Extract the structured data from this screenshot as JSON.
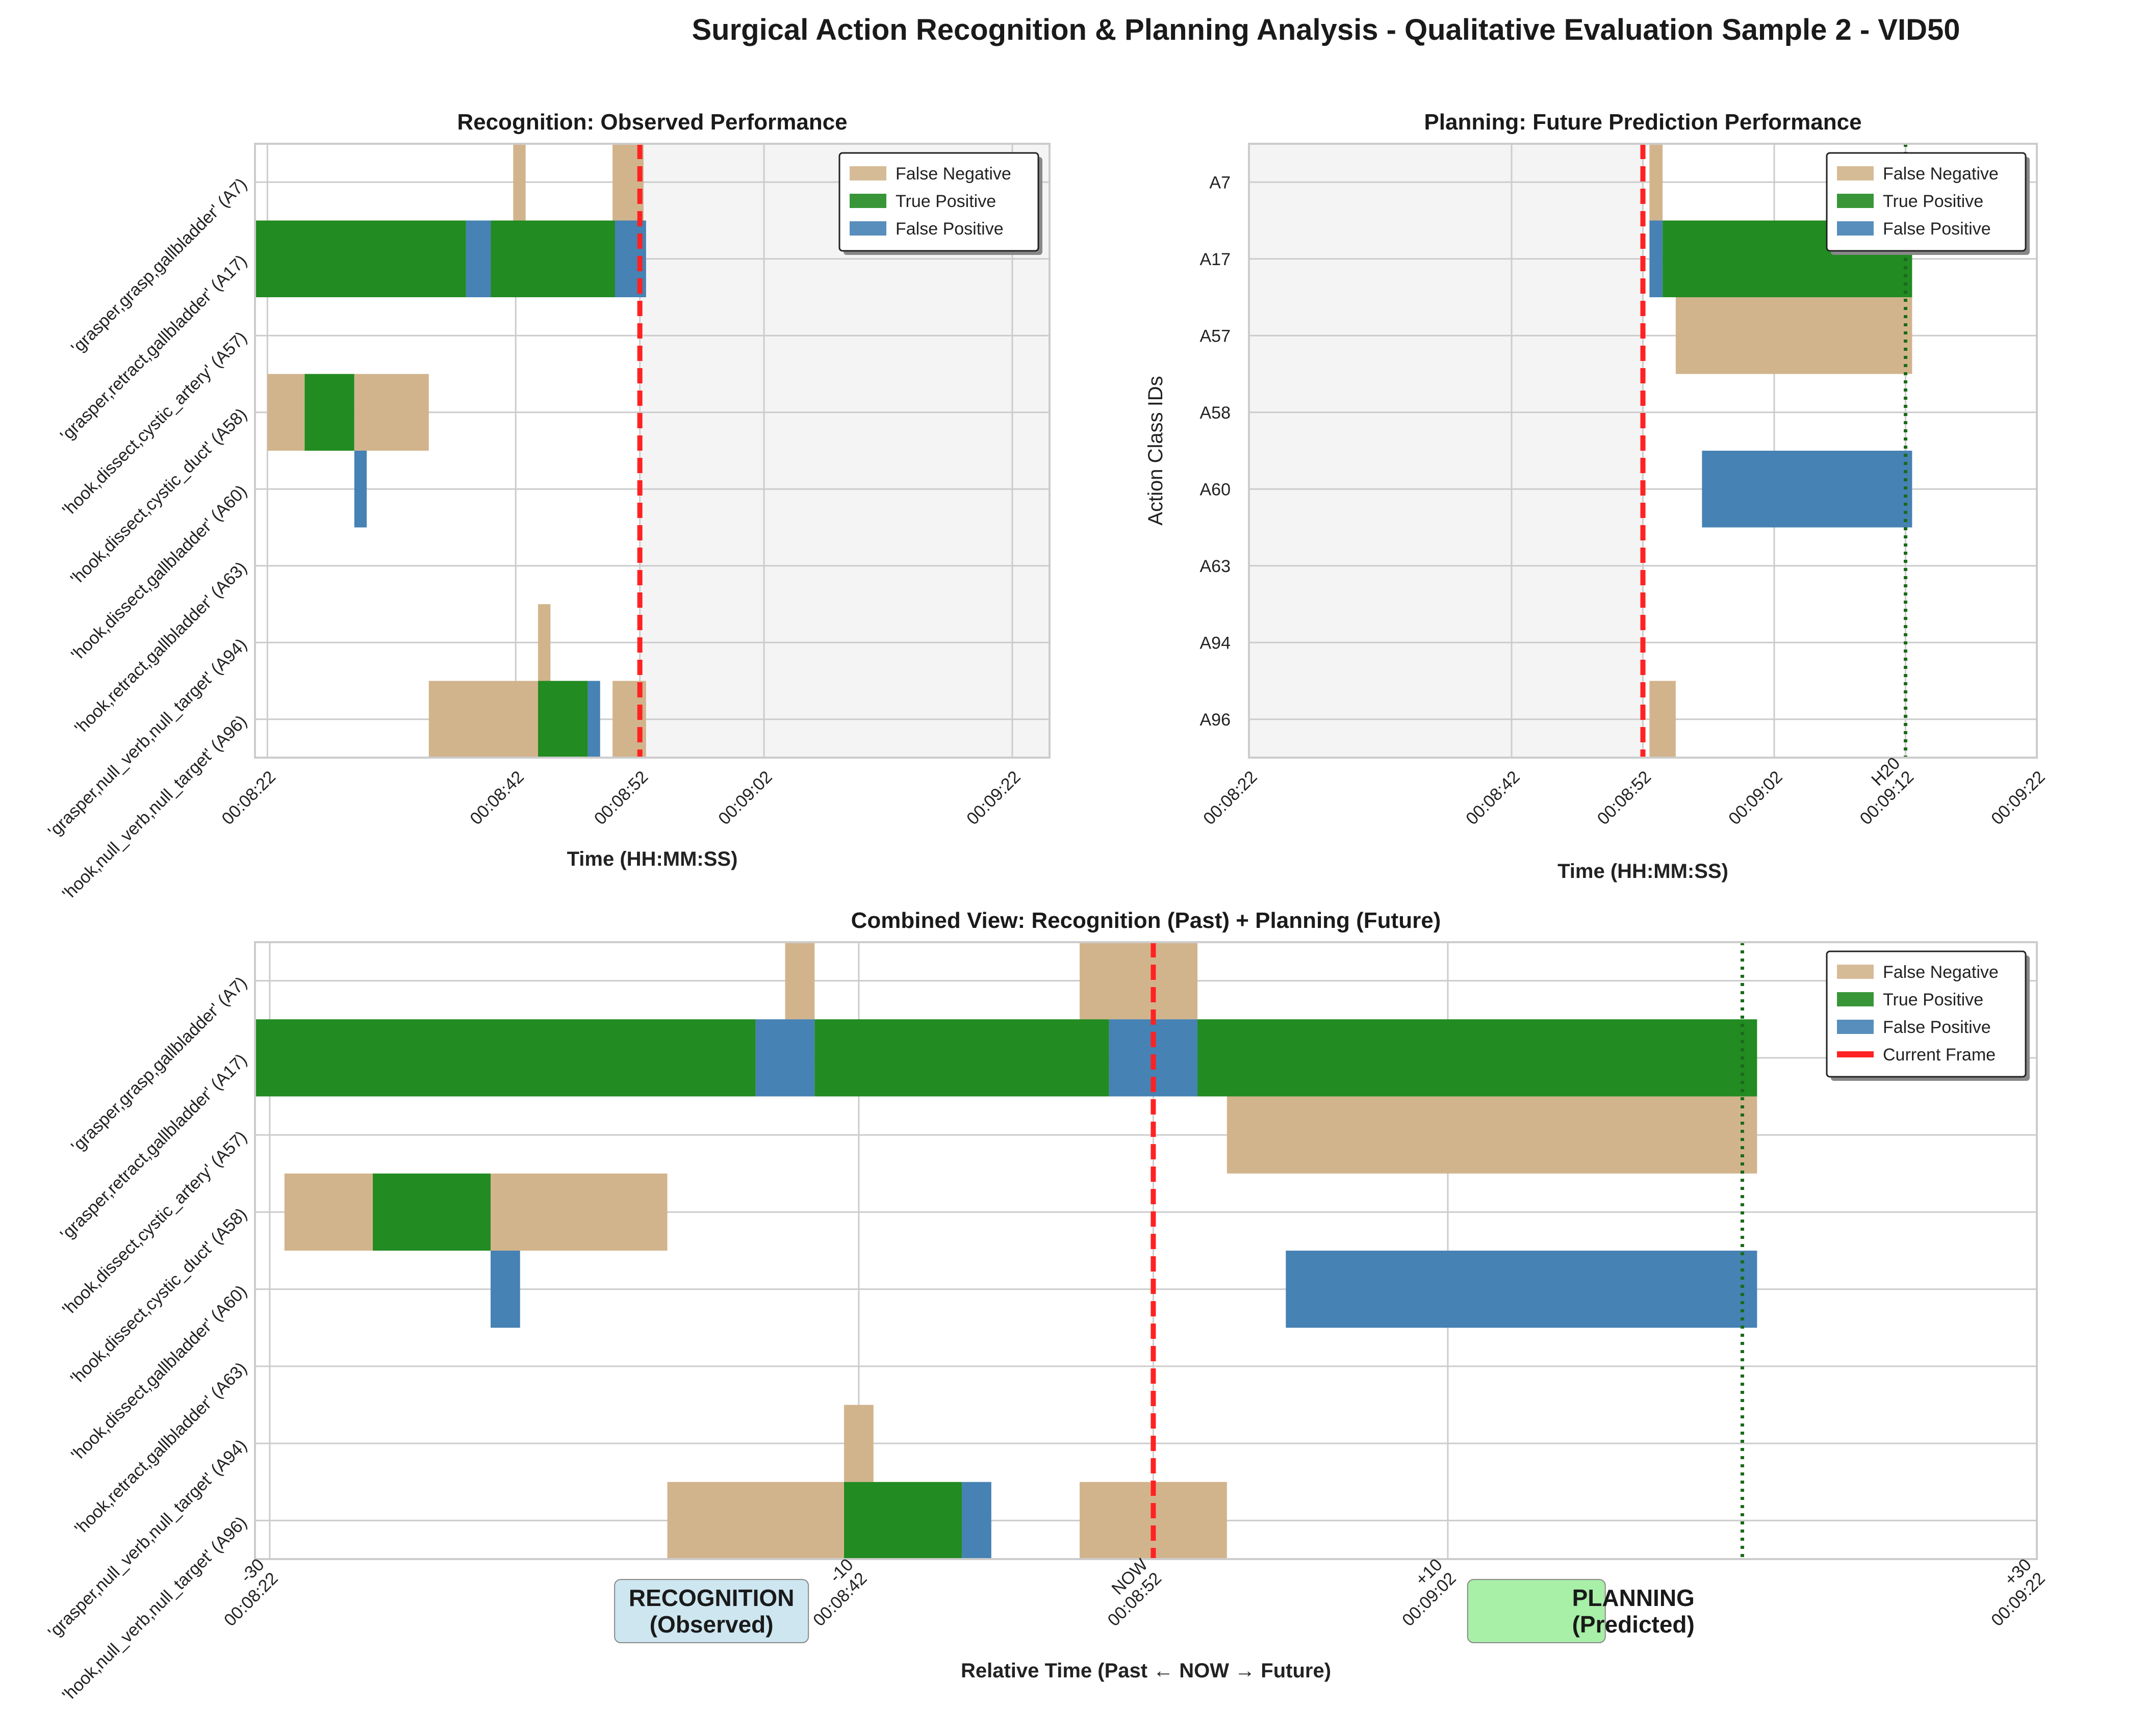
{
  "title": "Surgical Action Recognition & Planning Analysis - Qualitative Evaluation Sample 2 - VID50",
  "colors": {
    "false_negative": "#d2b48c",
    "true_positive": "#228b22",
    "false_positive": "#4682b4",
    "current_frame": "#ff2222",
    "horizon": "#1a6b1a",
    "panel_bg_future": "#f4f4f4",
    "recognition_box": "#cde6f0",
    "planning_box": "#a8efa8"
  },
  "legend": {
    "false_negative": "False Negative",
    "true_positive": "True Positive",
    "false_positive": "False Positive",
    "current_frame": "Current Frame"
  },
  "class_labels_long": [
    "'grasper,grasp,gallbladder' (A7)",
    "'grasper,retract,gallbladder' (A17)",
    "'hook,dissect,cystic_artery' (A57)",
    "'hook,dissect,cystic_duct' (A58)",
    "'hook,dissect,gallbladder' (A60)",
    "'hook,retract,gallbladder' (A63)",
    "'grasper,null_verb,null_target' (A94)",
    "'hook,null_verb,null_target' (A96)"
  ],
  "class_labels_short": [
    "A7",
    "A17",
    "A57",
    "A58",
    "A60",
    "A63",
    "A94",
    "A96"
  ],
  "chart_data": [
    {
      "id": "recognition",
      "type": "bar",
      "title": "Recognition: Observed Performance",
      "xlabel": "Time (HH:MM:SS)",
      "ylabel": "",
      "xlim": [
        -31,
        33
      ],
      "x_ticks": [
        {
          "v": -30,
          "label": "00:08:22"
        },
        {
          "v": -10,
          "label": "00:08:42"
        },
        {
          "v": 0,
          "label": "00:08:52"
        },
        {
          "v": 10,
          "label": "00:09:02"
        },
        {
          "v": 30,
          "label": "00:09:22"
        }
      ],
      "current_frame": 0,
      "shade_from": 0,
      "legend_position": "upper right",
      "bars": [
        {
          "row": 0,
          "start": -10.2,
          "end": -9.2,
          "kind": "FN"
        },
        {
          "row": 0,
          "start": -2.2,
          "end": 0.3,
          "kind": "FN"
        },
        {
          "row": 1,
          "start": -31,
          "end": -14.0,
          "kind": "TP"
        },
        {
          "row": 1,
          "start": -14.0,
          "end": -12.0,
          "kind": "FP"
        },
        {
          "row": 1,
          "start": -12.0,
          "end": -2.0,
          "kind": "TP"
        },
        {
          "row": 1,
          "start": -2.0,
          "end": 0.5,
          "kind": "FP"
        },
        {
          "row": 3,
          "start": -30.0,
          "end": -27.0,
          "kind": "FN"
        },
        {
          "row": 3,
          "start": -27.0,
          "end": -23.0,
          "kind": "TP"
        },
        {
          "row": 3,
          "start": -23.0,
          "end": -17.0,
          "kind": "FN"
        },
        {
          "row": 4,
          "start": -23.0,
          "end": -22.0,
          "kind": "FP"
        },
        {
          "row": 6,
          "start": -8.2,
          "end": -7.2,
          "kind": "FN"
        },
        {
          "row": 7,
          "start": -17.0,
          "end": -8.2,
          "kind": "FN"
        },
        {
          "row": 7,
          "start": -8.2,
          "end": -4.2,
          "kind": "TP"
        },
        {
          "row": 7,
          "start": -4.2,
          "end": -3.2,
          "kind": "FP"
        },
        {
          "row": 7,
          "start": -2.2,
          "end": 0.5,
          "kind": "FN"
        }
      ]
    },
    {
      "id": "planning",
      "type": "bar",
      "title": "Planning: Future Prediction Performance",
      "xlabel": "Time (HH:MM:SS)",
      "ylabel": "Action Class IDs",
      "xlim": [
        -30,
        30
      ],
      "x_ticks": [
        {
          "v": -30,
          "label": "00:08:22"
        },
        {
          "v": -10,
          "label": "00:08:42"
        },
        {
          "v": 0,
          "label": "00:08:52"
        },
        {
          "v": 10,
          "label": "00:09:02"
        },
        {
          "v": 20,
          "label": "H20\n00:09:12"
        },
        {
          "v": 30,
          "label": "00:09:22"
        }
      ],
      "current_frame": 0,
      "horizon": 20,
      "shade_to": 0,
      "legend_position": "upper right",
      "bars": [
        {
          "row": 0,
          "start": 0.5,
          "end": 1.5,
          "kind": "FN"
        },
        {
          "row": 1,
          "start": 0.5,
          "end": 1.5,
          "kind": "FP"
        },
        {
          "row": 1,
          "start": 1.5,
          "end": 20.5,
          "kind": "TP"
        },
        {
          "row": 2,
          "start": 2.5,
          "end": 20.5,
          "kind": "FN"
        },
        {
          "row": 4,
          "start": 4.5,
          "end": 20.5,
          "kind": "FP"
        },
        {
          "row": 7,
          "start": 0.5,
          "end": 2.5,
          "kind": "FN"
        }
      ]
    },
    {
      "id": "combined",
      "type": "bar",
      "title": "Combined View: Recognition (Past) + Planning (Future)",
      "xlabel": "Relative Time (Past ← NOW → Future)",
      "ylabel": "",
      "xlim": [
        -30.5,
        30
      ],
      "x_ticks": [
        {
          "v": -30,
          "label": "-30\n00:08:22"
        },
        {
          "v": -10,
          "label": "-10\n00:08:42"
        },
        {
          "v": 0,
          "label": "NOW\n00:08:52"
        },
        {
          "v": 10,
          "label": "+10\n00:09:02"
        },
        {
          "v": 30,
          "label": "+30\n00:09:22"
        }
      ],
      "current_frame": 0,
      "horizon": 20,
      "legend_position": "upper right",
      "phase_labels": {
        "recognition": "RECOGNITION\n(Observed)",
        "planning": "PLANNING\n(Predicted)"
      },
      "bars": [
        {
          "row": 0,
          "start": -12.5,
          "end": -11.5,
          "kind": "FN"
        },
        {
          "row": 0,
          "start": -2.5,
          "end": 1.5,
          "kind": "FN"
        },
        {
          "row": 1,
          "start": -30.5,
          "end": -13.5,
          "kind": "TP"
        },
        {
          "row": 1,
          "start": -13.5,
          "end": -11.5,
          "kind": "FP"
        },
        {
          "row": 1,
          "start": -11.5,
          "end": -1.5,
          "kind": "TP"
        },
        {
          "row": 1,
          "start": -1.5,
          "end": 1.5,
          "kind": "FP"
        },
        {
          "row": 1,
          "start": 1.5,
          "end": 20.5,
          "kind": "TP"
        },
        {
          "row": 2,
          "start": 2.5,
          "end": 20.5,
          "kind": "FN"
        },
        {
          "row": 3,
          "start": -29.5,
          "end": -26.5,
          "kind": "FN"
        },
        {
          "row": 3,
          "start": -26.5,
          "end": -22.5,
          "kind": "TP"
        },
        {
          "row": 3,
          "start": -22.5,
          "end": -16.5,
          "kind": "FN"
        },
        {
          "row": 4,
          "start": -22.5,
          "end": -21.5,
          "kind": "FP"
        },
        {
          "row": 4,
          "start": 4.5,
          "end": 20.5,
          "kind": "FP"
        },
        {
          "row": 6,
          "start": -10.5,
          "end": -9.5,
          "kind": "FN"
        },
        {
          "row": 7,
          "start": -16.5,
          "end": -10.5,
          "kind": "FN"
        },
        {
          "row": 7,
          "start": -10.5,
          "end": -6.5,
          "kind": "TP"
        },
        {
          "row": 7,
          "start": -6.5,
          "end": -5.5,
          "kind": "FP"
        },
        {
          "row": 7,
          "start": -2.5,
          "end": 2.5,
          "kind": "FN"
        }
      ]
    }
  ]
}
